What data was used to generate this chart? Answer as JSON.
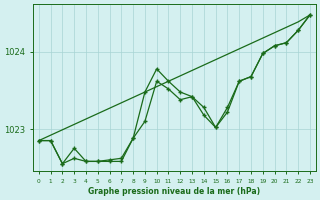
{
  "title": "Graphe pression niveau de la mer (hPa)",
  "x_hours": [
    0,
    1,
    2,
    3,
    4,
    5,
    6,
    7,
    8,
    9,
    10,
    11,
    12,
    13,
    14,
    15,
    16,
    17,
    18,
    19,
    20,
    21,
    22,
    23
  ],
  "line_actual": [
    1022.85,
    1022.85,
    1022.55,
    1022.75,
    1022.58,
    1022.58,
    1022.6,
    1022.62,
    1022.88,
    1023.1,
    1023.62,
    1023.52,
    1023.38,
    1023.42,
    1023.18,
    1023.02,
    1023.22,
    1023.62,
    1023.68,
    1023.98,
    1024.08,
    1024.12,
    1024.28,
    1024.48
  ],
  "line_upper": [
    1022.85,
    1022.85,
    1022.55,
    1022.62,
    1022.58,
    1022.58,
    1022.58,
    1022.58,
    1022.88,
    1023.48,
    1023.78,
    1023.62,
    1023.48,
    1023.42,
    1023.28,
    1023.02,
    1023.28,
    1023.62,
    1023.68,
    1023.98,
    1024.08,
    1024.12,
    1024.28,
    1024.48
  ],
  "line_trend": [
    1022.85,
    1022.92,
    1022.99,
    1023.06,
    1023.13,
    1023.2,
    1023.27,
    1023.34,
    1023.41,
    1023.48,
    1023.55,
    1023.62,
    1023.69,
    1023.76,
    1023.83,
    1023.9,
    1023.97,
    1024.04,
    1024.11,
    1024.18,
    1024.25,
    1024.32,
    1024.39,
    1024.48
  ],
  "line_color": "#1a6b1a",
  "bg_color": "#d4f0f0",
  "grid_color": "#a8d4d4",
  "text_color": "#1a6b1a",
  "ylim_min": 1022.45,
  "ylim_max": 1024.62,
  "yticks": [
    1023,
    1024
  ],
  "marker": "+"
}
